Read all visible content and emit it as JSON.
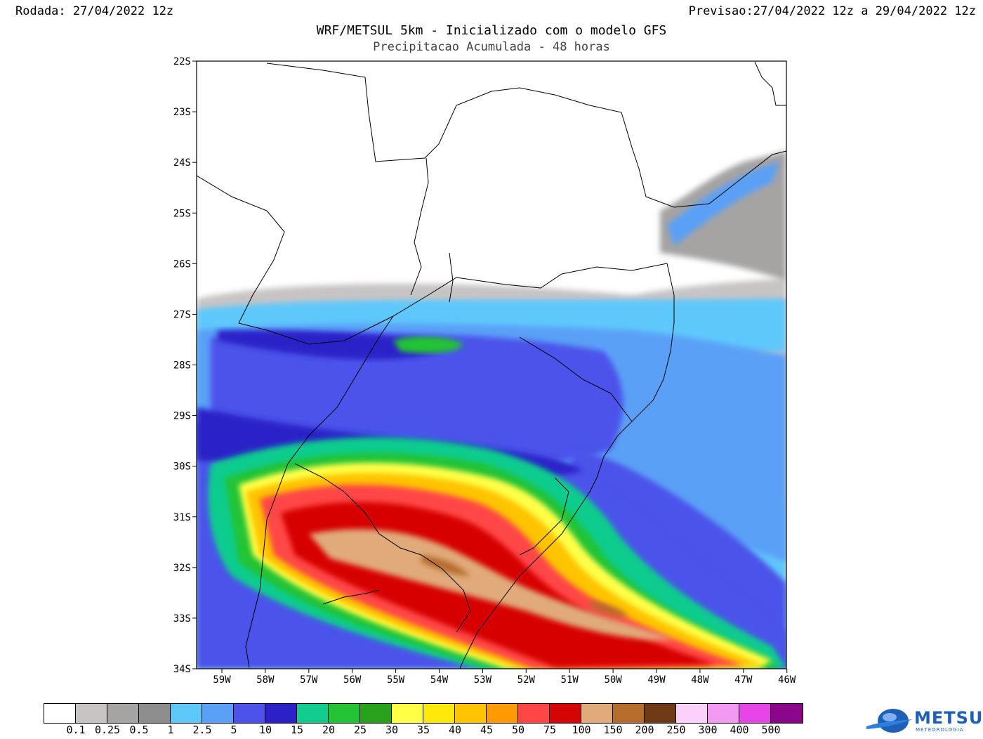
{
  "header": {
    "rodada": "Rodada: 27/04/2022 12z",
    "previsao": "Previsao:27/04/2022 12z a 29/04/2022 12z",
    "title": "WRF/METSUL 5km - Inicializado com o modelo GFS",
    "subtitle": "Precipitacao Acumulada - 48 horas"
  },
  "axes": {
    "lat_labels": [
      "22S",
      "23S",
      "24S",
      "25S",
      "26S",
      "27S",
      "28S",
      "29S",
      "30S",
      "31S",
      "32S",
      "33S",
      "34S"
    ],
    "lon_labels": [
      "59W",
      "58W",
      "57W",
      "56W",
      "55W",
      "54W",
      "53W",
      "52W",
      "51W",
      "50W",
      "49W",
      "48W",
      "47W",
      "46W"
    ],
    "lat_range": [
      -34,
      -22
    ],
    "lon_range": [
      -59.5,
      -46
    ]
  },
  "legend": {
    "colors": [
      "#ffffff",
      "#c8c4c4",
      "#a6a3a3",
      "#8e8d8d",
      "#5ec8fb",
      "#5aa0f7",
      "#4c52ea",
      "#2c20c8",
      "#11cc8e",
      "#22c334",
      "#2aa11a",
      "#ffff46",
      "#fde80a",
      "#fec402",
      "#ff9904",
      "#ff4646",
      "#d60505",
      "#e0aa7a",
      "#b66c2b",
      "#6e3914",
      "#fbd0fb",
      "#f29af2",
      "#e845e8",
      "#8a058a"
    ],
    "labels": [
      "0.1",
      "0.25",
      "0.5",
      "1",
      "2.5",
      "5",
      "10",
      "15",
      "20",
      "25",
      "30",
      "35",
      "40",
      "45",
      "50",
      "75",
      "100",
      "150",
      "200",
      "250",
      "300",
      "400",
      "500"
    ]
  },
  "logo": {
    "name": "METSUL",
    "subtitle": "METEOROLOGIA"
  }
}
